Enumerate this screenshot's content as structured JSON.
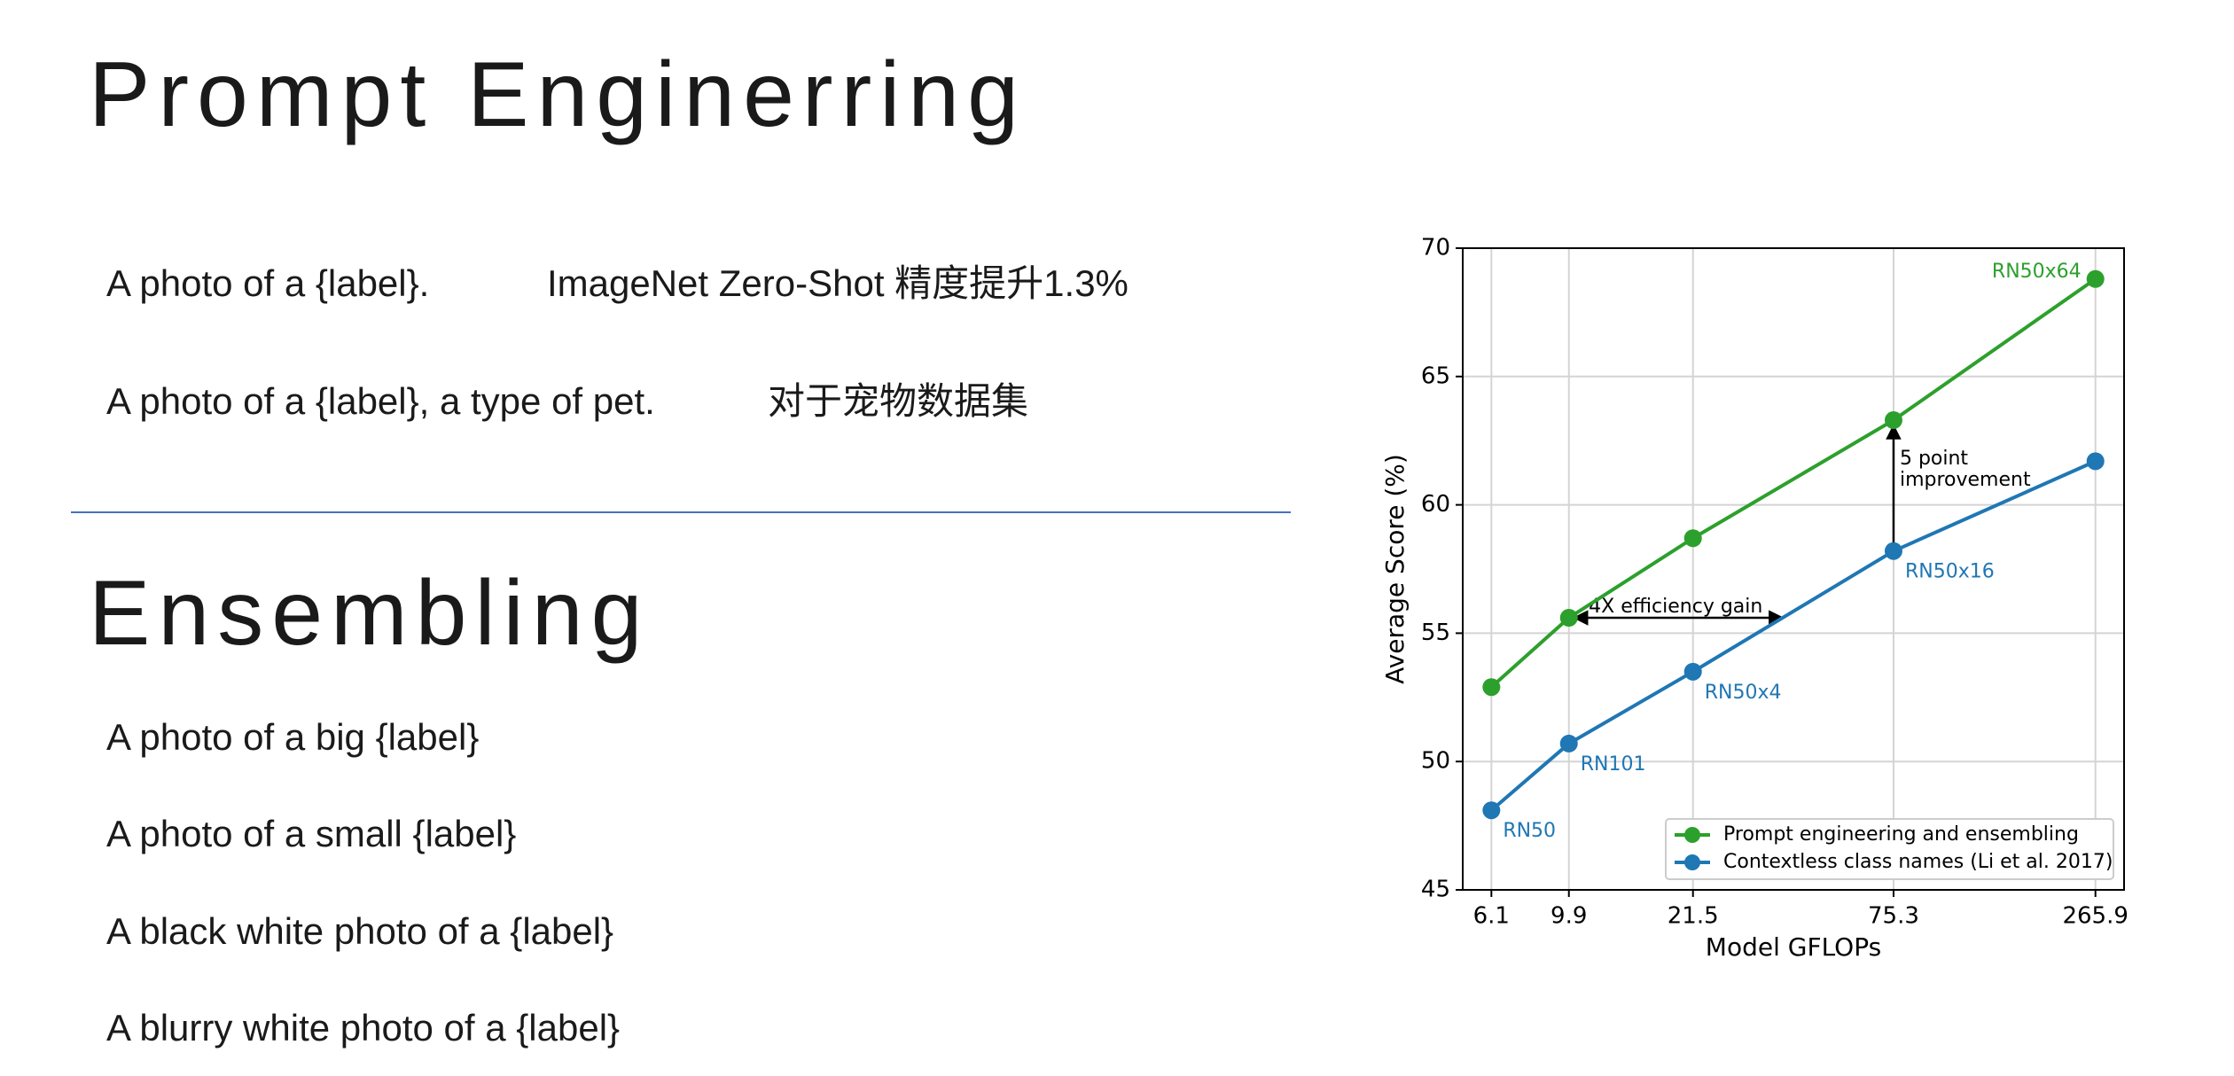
{
  "slide": {
    "title": "Prompt Enginerring",
    "prompts": [
      {
        "template": "A photo of a {label}.",
        "note": "ImageNet Zero-Shot 精度提升1.3%"
      },
      {
        "template": "A photo of a {label}, a type of pet.",
        "note": "对于宠物数据集"
      }
    ],
    "ensemble_title": "Ensembling",
    "ensemble_prompts": [
      "A photo of a big {label}",
      "A photo of a small {label}",
      "A black white photo of a {label}",
      "A blurry white photo of a {label}"
    ]
  },
  "chart_data": {
    "type": "line",
    "xlabel": "Model GFLOPs",
    "ylabel": "Average Score (%)",
    "x": [
      6.1,
      9.9,
      21.5,
      75.3,
      265.9
    ],
    "xscale": "log",
    "xlim": [
      5.1,
      318
    ],
    "xticks": [
      6.1,
      9.9,
      21.5,
      75.3,
      265.9
    ],
    "ylim": [
      45,
      70
    ],
    "yticks": [
      45,
      50,
      55,
      60,
      65,
      70
    ],
    "grid": true,
    "legend": "lower right",
    "series": [
      {
        "name": "Prompt engineering and ensembling",
        "color": "#2ca02c",
        "values": [
          52.9,
          55.6,
          58.7,
          63.3,
          68.8
        ],
        "point_labels": [
          null,
          null,
          null,
          null,
          "RN50x64"
        ]
      },
      {
        "name": "Contextless class names (Li et al. 2017)",
        "color": "#1f77b4",
        "values": [
          48.1,
          50.7,
          53.5,
          58.2,
          61.7
        ],
        "point_labels": [
          "RN50",
          "RN101",
          "RN50x4",
          "RN50x16",
          null
        ]
      }
    ],
    "annotations": [
      {
        "text": "4X efficiency gain"
      },
      {
        "text": [
          "5 point",
          "improvement"
        ]
      }
    ]
  }
}
